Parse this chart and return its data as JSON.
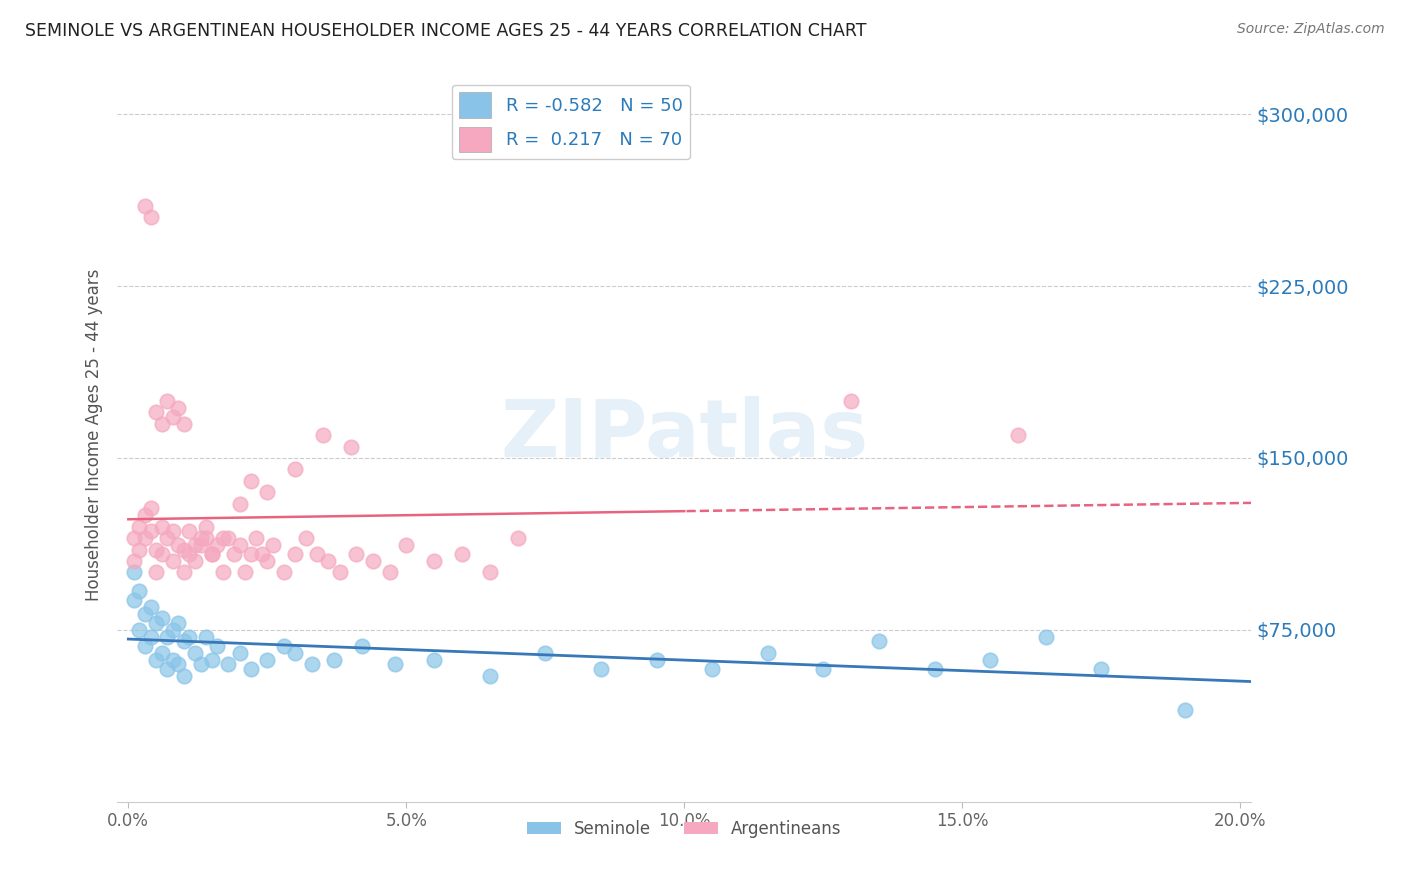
{
  "title": "SEMINOLE VS ARGENTINEAN HOUSEHOLDER INCOME AGES 25 - 44 YEARS CORRELATION CHART",
  "source": "Source: ZipAtlas.com",
  "ylabel": "Householder Income Ages 25 - 44 years",
  "xlim": [
    -0.002,
    0.202
  ],
  "ylim": [
    0,
    320000
  ],
  "yticks": [
    75000,
    150000,
    225000,
    300000
  ],
  "xticks": [
    0.0,
    0.05,
    0.1,
    0.15,
    0.2
  ],
  "xtick_labels": [
    "0.0%",
    "5.0%",
    "10.0%",
    "15.0%",
    "20.0%"
  ],
  "seminole_color": "#89c4e8",
  "argentinean_color": "#f5a8bf",
  "seminole_line_color": "#3878b8",
  "argentinean_line_color": "#e8637e",
  "legend_color": "#2b7bba",
  "R_seminole": -0.582,
  "N_seminole": 50,
  "R_argentinean": 0.217,
  "N_argentinean": 70,
  "background_color": "#ffffff",
  "watermark": "ZIPatlas",
  "seminole_x": [
    0.001,
    0.001,
    0.002,
    0.002,
    0.003,
    0.003,
    0.004,
    0.004,
    0.005,
    0.005,
    0.006,
    0.006,
    0.007,
    0.007,
    0.008,
    0.008,
    0.009,
    0.009,
    0.01,
    0.01,
    0.011,
    0.012,
    0.013,
    0.014,
    0.015,
    0.016,
    0.018,
    0.02,
    0.022,
    0.025,
    0.028,
    0.03,
    0.033,
    0.037,
    0.042,
    0.048,
    0.055,
    0.065,
    0.075,
    0.085,
    0.095,
    0.105,
    0.115,
    0.125,
    0.135,
    0.145,
    0.155,
    0.165,
    0.175,
    0.19
  ],
  "seminole_y": [
    100000,
    88000,
    92000,
    75000,
    82000,
    68000,
    85000,
    72000,
    78000,
    62000,
    80000,
    65000,
    72000,
    58000,
    75000,
    62000,
    78000,
    60000,
    70000,
    55000,
    72000,
    65000,
    60000,
    72000,
    62000,
    68000,
    60000,
    65000,
    58000,
    62000,
    68000,
    65000,
    60000,
    62000,
    68000,
    60000,
    62000,
    55000,
    65000,
    58000,
    62000,
    58000,
    65000,
    58000,
    70000,
    58000,
    62000,
    72000,
    58000,
    40000
  ],
  "argentinean_x": [
    0.001,
    0.001,
    0.002,
    0.002,
    0.003,
    0.003,
    0.004,
    0.004,
    0.005,
    0.005,
    0.006,
    0.006,
    0.007,
    0.008,
    0.008,
    0.009,
    0.01,
    0.01,
    0.011,
    0.012,
    0.013,
    0.014,
    0.015,
    0.016,
    0.017,
    0.018,
    0.019,
    0.02,
    0.021,
    0.022,
    0.023,
    0.024,
    0.025,
    0.026,
    0.028,
    0.03,
    0.032,
    0.034,
    0.036,
    0.038,
    0.041,
    0.044,
    0.047,
    0.05,
    0.055,
    0.06,
    0.065,
    0.07,
    0.003,
    0.004,
    0.005,
    0.006,
    0.007,
    0.008,
    0.009,
    0.01,
    0.011,
    0.012,
    0.013,
    0.014,
    0.015,
    0.017,
    0.02,
    0.022,
    0.025,
    0.03,
    0.035,
    0.04,
    0.13,
    0.16
  ],
  "argentinean_y": [
    105000,
    115000,
    110000,
    120000,
    115000,
    125000,
    118000,
    128000,
    110000,
    100000,
    120000,
    108000,
    115000,
    118000,
    105000,
    112000,
    110000,
    100000,
    108000,
    105000,
    112000,
    115000,
    108000,
    112000,
    100000,
    115000,
    108000,
    112000,
    100000,
    108000,
    115000,
    108000,
    105000,
    112000,
    100000,
    108000,
    115000,
    108000,
    105000,
    100000,
    108000,
    105000,
    100000,
    112000,
    105000,
    108000,
    100000,
    115000,
    260000,
    255000,
    170000,
    165000,
    175000,
    168000,
    172000,
    165000,
    118000,
    112000,
    115000,
    120000,
    108000,
    115000,
    130000,
    140000,
    135000,
    145000,
    160000,
    155000,
    175000,
    160000
  ]
}
